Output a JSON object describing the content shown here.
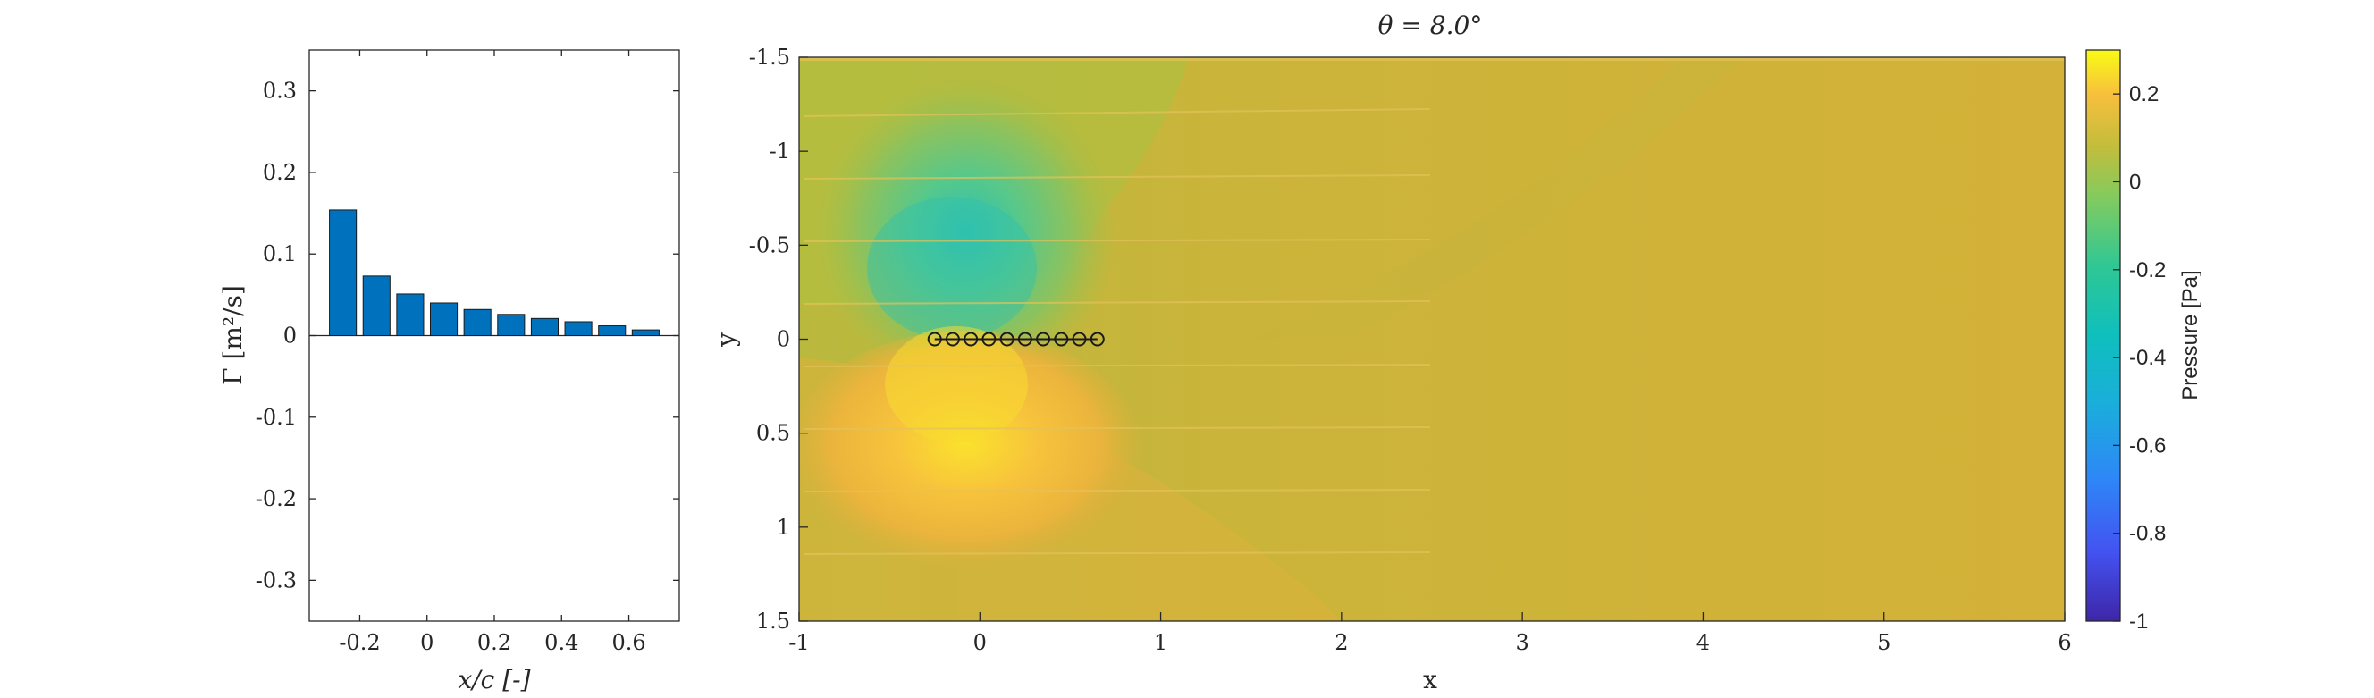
{
  "chart_data": [
    {
      "type": "bar",
      "title": "",
      "xlabel": "x/c [-]",
      "ylabel": "Γ [m²/s]",
      "x": [
        -0.25,
        -0.15,
        -0.05,
        0.05,
        0.15,
        0.25,
        0.35,
        0.45,
        0.55,
        0.65
      ],
      "values": [
        0.154,
        0.073,
        0.051,
        0.04,
        0.032,
        0.026,
        0.021,
        0.017,
        0.012,
        0.007
      ],
      "xlim": [
        -0.35,
        0.75
      ],
      "ylim": [
        -0.35,
        0.35
      ],
      "xticks": [
        -0.2,
        0,
        0.2,
        0.4,
        0.6
      ],
      "xtick_labels": [
        "-0.2",
        "0",
        "0.2",
        "0.4",
        "0.6"
      ],
      "yticks": [
        0.3,
        0.2,
        0.1,
        0,
        -0.1,
        -0.2,
        -0.3
      ],
      "ytick_labels": [
        "0.3",
        "0.2",
        "0.1",
        "0",
        "-0.1",
        "-0.2",
        "-0.3"
      ],
      "bar_color": "#0072BD"
    },
    {
      "type": "heatmap",
      "title": "θ = 8.0°",
      "xlabel": "x",
      "ylabel": "y",
      "xlim": [
        -1,
        6
      ],
      "ylim": [
        -1.5,
        1.5
      ],
      "y_direction": "reversed",
      "xticks": [
        -1,
        0,
        1,
        2,
        3,
        4,
        5,
        6
      ],
      "xtick_labels": [
        "-1",
        "0",
        "1",
        "2",
        "3",
        "4",
        "5",
        "6"
      ],
      "yticks": [
        -1.5,
        -1,
        -0.5,
        0,
        0.5,
        1,
        1.5
      ],
      "ytick_labels": [
        "-1.5",
        "-1",
        "-0.5",
        "0",
        "0.5",
        "1",
        "1.5"
      ],
      "vortex_points": {
        "x": [
          -0.25,
          -0.15,
          -0.05,
          0.05,
          0.15,
          0.25,
          0.35,
          0.45,
          0.55,
          0.65
        ],
        "y": [
          0,
          0,
          0,
          0,
          0,
          0,
          0,
          0,
          0,
          0
        ]
      },
      "pressure_field": {
        "background": 0.0,
        "features": [
          {
            "kind": "suction",
            "x": -0.1,
            "y": -0.2,
            "peak": -0.35
          },
          {
            "kind": "overpressure",
            "x": -0.1,
            "y": 0.25,
            "peak": 0.12
          }
        ]
      },
      "colorbar": {
        "label": "Pressure [Pa]",
        "range": [
          -1,
          0.3
        ],
        "ticks": [
          0.2,
          0,
          -0.2,
          -0.4,
          -0.6,
          -0.8,
          -1
        ],
        "tick_labels": [
          "0.2",
          "0",
          "-0.2",
          "-0.4",
          "-0.6",
          "-0.8",
          "-1"
        ],
        "colormap": "parula"
      }
    }
  ]
}
